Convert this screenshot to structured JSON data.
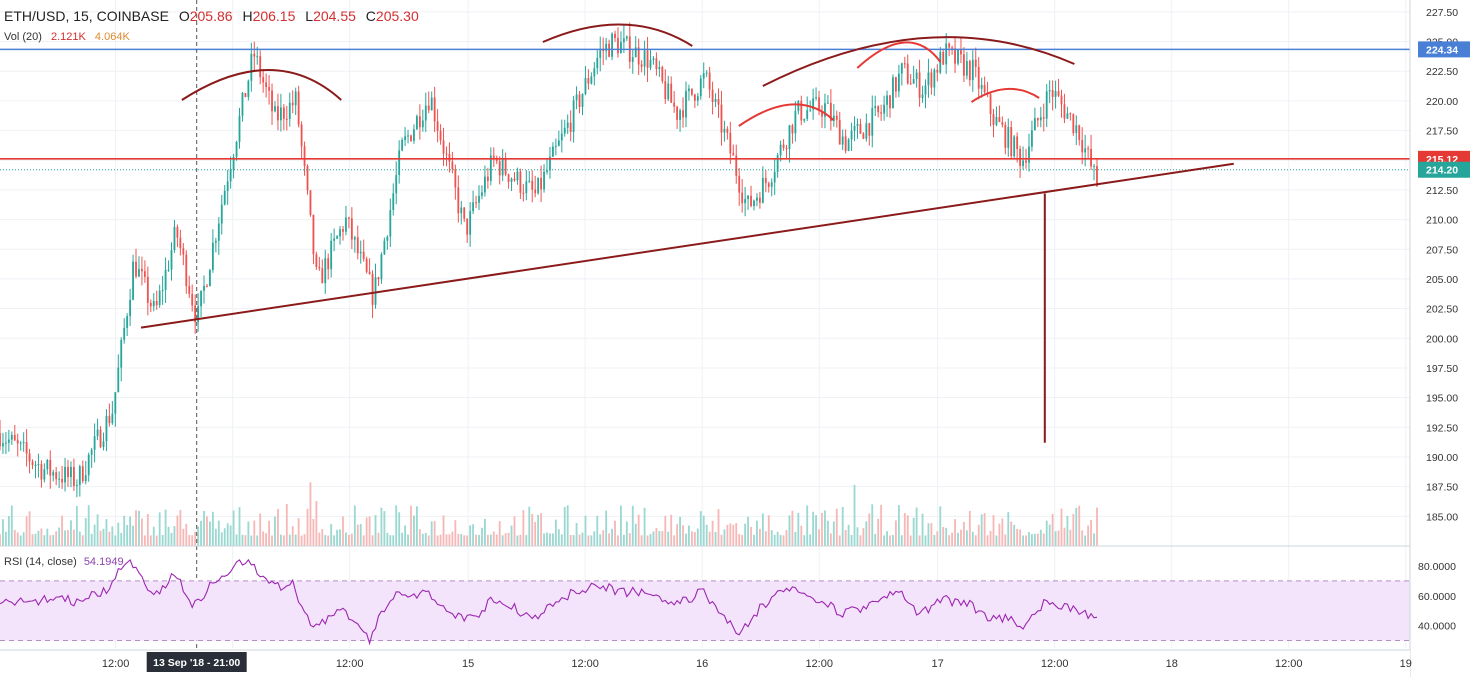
{
  "legend": {
    "symbol": "ETH/USD, 15, COINBASE",
    "open_label": "O",
    "open": "205.86",
    "high_label": "H",
    "high": "206.15",
    "low_label": "L",
    "low": "204.55",
    "close_label": "C",
    "close": "205.30"
  },
  "volume": {
    "label": "Vol (20)",
    "value1": "2.121K",
    "value2": "4.064K"
  },
  "rsi": {
    "label": "RSI (14, close)",
    "value": "54.1949"
  },
  "crosshair": {
    "date_label": "13 Sep '18 - 21:00"
  },
  "colors": {
    "up": "#26a69a",
    "down": "#ef5350",
    "rsi_line": "#9c27b0",
    "resistance": "#4a7fd6",
    "support_red": "#e53935",
    "drawing": "#8b1a1a"
  },
  "chart_data": {
    "type": "candlestick",
    "title": "ETH/USD, 15, COINBASE",
    "y_price_ticks": [
      "227.50",
      "225.00",
      "222.50",
      "220.00",
      "217.50",
      "215.00",
      "212.50",
      "210.00",
      "207.50",
      "205.00",
      "202.50",
      "200.00",
      "197.50",
      "195.00",
      "192.50",
      "190.00",
      "187.50",
      "185.00"
    ],
    "y_rsi_ticks": [
      "80.0000",
      "60.0000",
      "40.0000"
    ],
    "x_ticks": [
      "12:00",
      "14",
      "12:00",
      "15",
      "12:00",
      "16",
      "12:00",
      "17",
      "12:00",
      "18",
      "12:00",
      "19"
    ],
    "price_range": [
      182.5,
      228.5
    ],
    "rsi_range": [
      25,
      92
    ],
    "rsi_band": [
      30,
      70
    ],
    "horizontal_levels": [
      {
        "label": "224.34",
        "value": 224.34,
        "color": "#4a7fd6"
      },
      {
        "label": "215.12",
        "value": 215.12,
        "color": "#e53935"
      }
    ],
    "last_price": {
      "label": "214.20",
      "value": 214.2
    },
    "trendline": {
      "from": {
        "t": 0.1,
        "price": 200.9
      },
      "to": {
        "t": 0.875,
        "price": 214.7
      }
    },
    "anchors": [
      {
        "t": 0.0,
        "p": 192.0
      },
      {
        "t": 0.03,
        "p": 189.0
      },
      {
        "t": 0.055,
        "p": 188.0
      },
      {
        "t": 0.08,
        "p": 194.0
      },
      {
        "t": 0.095,
        "p": 206.5
      },
      {
        "t": 0.11,
        "p": 202.0
      },
      {
        "t": 0.125,
        "p": 209.0
      },
      {
        "t": 0.14,
        "p": 201.5
      },
      {
        "t": 0.16,
        "p": 213.0
      },
      {
        "t": 0.18,
        "p": 224.0
      },
      {
        "t": 0.195,
        "p": 218.5
      },
      {
        "t": 0.21,
        "p": 220.0
      },
      {
        "t": 0.225,
        "p": 204.5
      },
      {
        "t": 0.245,
        "p": 210.0
      },
      {
        "t": 0.265,
        "p": 203.5
      },
      {
        "t": 0.285,
        "p": 216.0
      },
      {
        "t": 0.305,
        "p": 220.5
      },
      {
        "t": 0.33,
        "p": 209.0
      },
      {
        "t": 0.35,
        "p": 215.0
      },
      {
        "t": 0.38,
        "p": 212.0
      },
      {
        "t": 0.405,
        "p": 218.5
      },
      {
        "t": 0.425,
        "p": 224.0
      },
      {
        "t": 0.435,
        "p": 225.0
      },
      {
        "t": 0.46,
        "p": 223.5
      },
      {
        "t": 0.48,
        "p": 219.0
      },
      {
        "t": 0.5,
        "p": 222.0
      },
      {
        "t": 0.52,
        "p": 215.0
      },
      {
        "t": 0.53,
        "p": 211.0
      },
      {
        "t": 0.545,
        "p": 213.5
      },
      {
        "t": 0.565,
        "p": 219.0
      },
      {
        "t": 0.585,
        "p": 219.5
      },
      {
        "t": 0.6,
        "p": 216.5
      },
      {
        "t": 0.625,
        "p": 219.0
      },
      {
        "t": 0.64,
        "p": 222.5
      },
      {
        "t": 0.655,
        "p": 221.0
      },
      {
        "t": 0.67,
        "p": 224.0
      },
      {
        "t": 0.69,
        "p": 222.5
      },
      {
        "t": 0.705,
        "p": 218.5
      },
      {
        "t": 0.725,
        "p": 215.0
      },
      {
        "t": 0.745,
        "p": 221.0
      },
      {
        "t": 0.765,
        "p": 217.5
      },
      {
        "t": 0.778,
        "p": 213.0
      }
    ]
  }
}
